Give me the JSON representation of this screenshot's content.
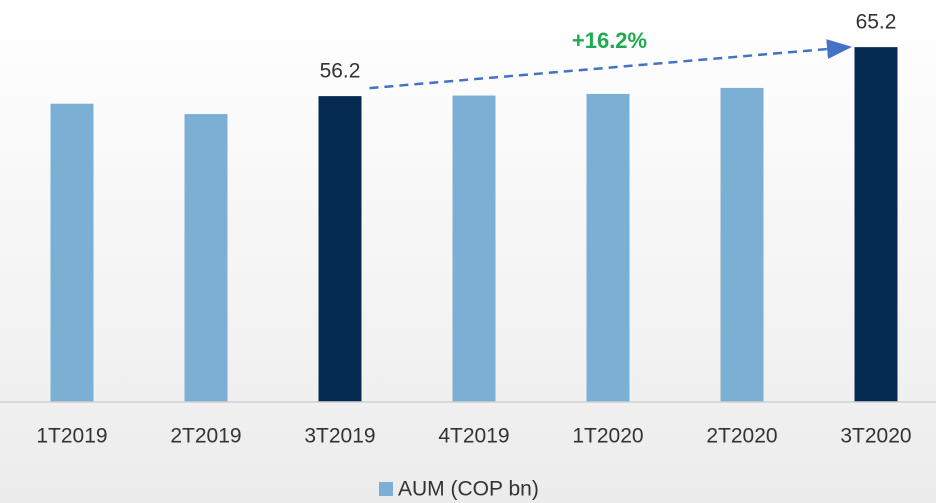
{
  "chart_data": {
    "type": "bar",
    "categories": [
      "1T2019",
      "2T2019",
      "3T2019",
      "4T2019",
      "1T2020",
      "2T2020",
      "3T2020"
    ],
    "series": [
      {
        "name": "AUM (COP bn)",
        "color": "#7bafd4",
        "values": [
          54.8,
          52.9,
          56.2,
          56.3,
          56.6,
          57.7,
          65.2
        ],
        "value_labels": [
          null,
          null,
          "56.2",
          null,
          null,
          null,
          "65.2"
        ],
        "colors": [
          "#7bafd4",
          "#7bafd4",
          "#062b52",
          "#7bafd4",
          "#7bafd4",
          "#7bafd4",
          "#062b52"
        ]
      }
    ],
    "annotation": "+16.2%",
    "ylim": [
      0,
      70
    ],
    "grid": false,
    "legend": "bottom"
  }
}
